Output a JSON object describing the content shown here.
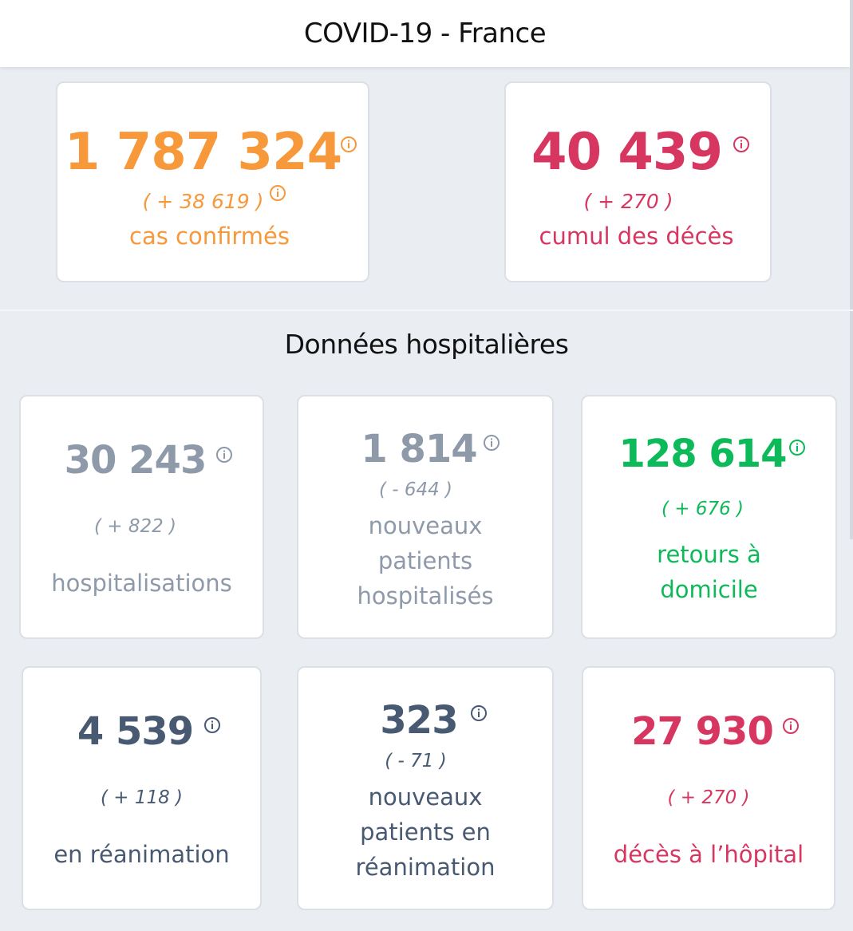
{
  "header": {
    "title": "COVID-19 - France"
  },
  "summary": {
    "cases": {
      "value": "1 787 324",
      "delta": "( + 38 619 )",
      "label": "cas confirmés",
      "color": "#f7983a"
    },
    "deaths": {
      "value": "40 439",
      "delta": "( + 270 )",
      "label": "cumul des décès",
      "color": "#d63660"
    }
  },
  "hospital": {
    "title": "Données hospitalières",
    "hospitalisations": {
      "value": "30 243",
      "delta": "( + 822 )",
      "label": "hospitalisations",
      "color": "#8e99aa"
    },
    "new_hospitalised": {
      "value": "1 814",
      "delta": "( - 644 )",
      "label_lines": [
        "nouveaux",
        "patients",
        "hospitalisés"
      ],
      "color": "#8e99aa"
    },
    "returns_home": {
      "value": "128 614",
      "delta": "( + 676 )",
      "label_lines": [
        "retours à",
        "domicile"
      ],
      "color": "#0dba59"
    },
    "icu": {
      "value": "4 539",
      "delta": "( + 118 )",
      "label": "en réanimation",
      "color": "#485972"
    },
    "new_icu": {
      "value": "323",
      "delta": "( - 71 )",
      "label_lines": [
        "nouveaux",
        "patients en",
        "réanimation"
      ],
      "color": "#485972"
    },
    "hospital_deaths": {
      "value": "27 930",
      "delta": "( + 270 )",
      "label": "décès à l’hôpital",
      "color": "#d63660"
    }
  },
  "icons": {
    "info": "info-circle-icon"
  }
}
